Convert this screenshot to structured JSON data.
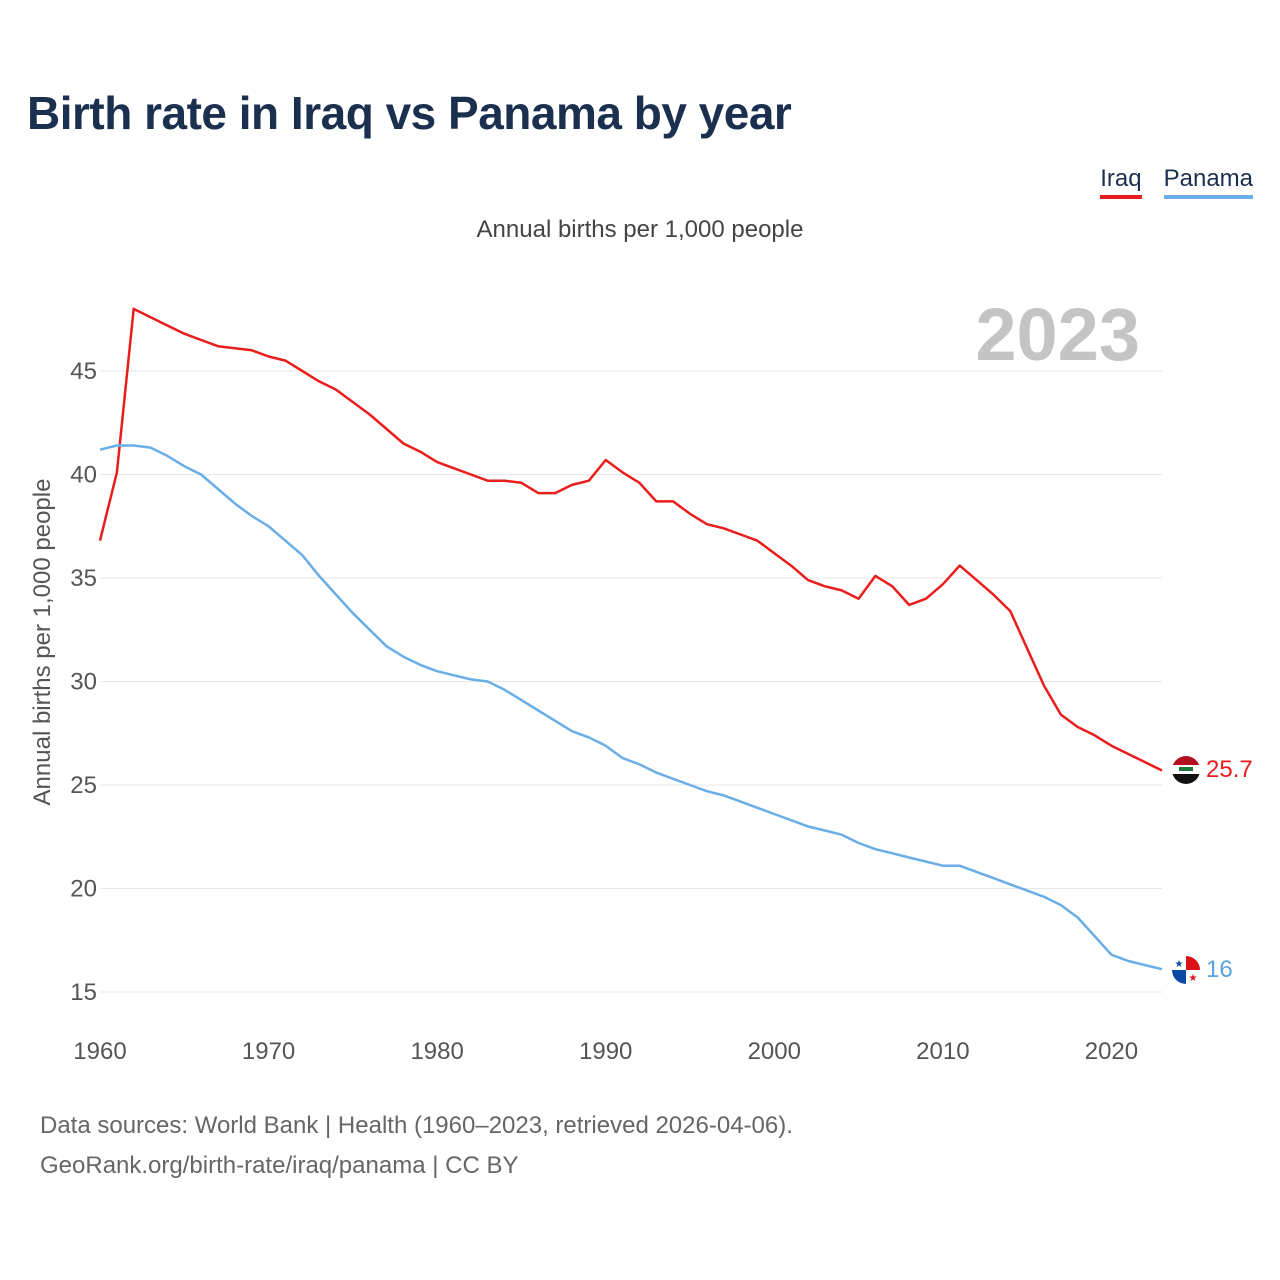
{
  "title": "Birth rate in Iraq vs Panama by year",
  "legend": [
    {
      "name": "Iraq",
      "color": "#ea1d1d"
    },
    {
      "name": "Panama",
      "color": "#6aaee8"
    }
  ],
  "subtitle": "Annual births per 1,000 people",
  "year_label": "2023",
  "footer": {
    "line1": "Data sources: World Bank | Health (1960–2023, retrieved 2026-04-06).",
    "line2": "GeoRank.org/birth-rate/iraq/panama | CC BY"
  },
  "chart_data": {
    "type": "line",
    "title": "Birth rate in Iraq vs Panama by year",
    "xlabel": "",
    "ylabel": "Annual births per 1,000 people",
    "xlim": [
      1960,
      2023
    ],
    "ylim": [
      15,
      48
    ],
    "yticks": [
      15,
      20,
      25,
      30,
      35,
      40,
      45
    ],
    "xticks": [
      1960,
      1970,
      1980,
      1990,
      2000,
      2010,
      2020
    ],
    "grid": true,
    "legend_position": "top-right",
    "x": [
      1960,
      1961,
      1962,
      1963,
      1964,
      1965,
      1966,
      1967,
      1968,
      1969,
      1970,
      1971,
      1972,
      1973,
      1974,
      1975,
      1976,
      1977,
      1978,
      1979,
      1980,
      1981,
      1982,
      1983,
      1984,
      1985,
      1986,
      1987,
      1988,
      1989,
      1990,
      1991,
      1992,
      1993,
      1994,
      1995,
      1996,
      1997,
      1998,
      1999,
      2000,
      2001,
      2002,
      2003,
      2004,
      2005,
      2006,
      2007,
      2008,
      2009,
      2010,
      2011,
      2012,
      2013,
      2014,
      2015,
      2016,
      2017,
      2018,
      2019,
      2020,
      2021,
      2022,
      2023
    ],
    "series": [
      {
        "name": "Iraq",
        "color": "#ea1d1d",
        "end_label": "25.7",
        "values": [
          36.8,
          40.1,
          48.0,
          47.6,
          47.2,
          46.8,
          46.5,
          46.2,
          46.1,
          46.0,
          45.7,
          45.5,
          45.0,
          44.5,
          44.1,
          43.5,
          42.9,
          42.2,
          41.5,
          41.1,
          40.6,
          40.3,
          40.0,
          39.7,
          39.7,
          39.6,
          39.1,
          39.1,
          39.5,
          39.7,
          40.7,
          40.1,
          39.6,
          38.7,
          38.7,
          38.1,
          37.6,
          37.4,
          37.1,
          36.8,
          36.2,
          35.6,
          34.9,
          34.6,
          34.4,
          34.0,
          35.1,
          34.6,
          33.7,
          34.0,
          34.7,
          35.6,
          34.9,
          34.2,
          33.4,
          31.6,
          29.8,
          28.4,
          27.8,
          27.4,
          26.9,
          26.5,
          26.1,
          25.7
        ]
      },
      {
        "name": "Panama",
        "color": "#6aaee8",
        "end_label": "16",
        "values": [
          41.2,
          41.4,
          41.4,
          41.3,
          40.9,
          40.4,
          40.0,
          39.3,
          38.6,
          38.0,
          37.5,
          36.8,
          36.1,
          35.1,
          34.2,
          33.3,
          32.5,
          31.7,
          31.2,
          30.8,
          30.5,
          30.3,
          30.1,
          30.0,
          29.6,
          29.1,
          28.6,
          28.1,
          27.6,
          27.3,
          26.9,
          26.3,
          26.0,
          25.6,
          25.3,
          25.0,
          24.7,
          24.5,
          24.2,
          23.9,
          23.6,
          23.3,
          23.0,
          22.8,
          22.6,
          22.2,
          21.9,
          21.7,
          21.5,
          21.3,
          21.1,
          21.1,
          20.8,
          20.5,
          20.2,
          19.9,
          19.6,
          19.2,
          18.6,
          17.7,
          16.8,
          16.5,
          16.3,
          16.1
        ]
      }
    ]
  }
}
